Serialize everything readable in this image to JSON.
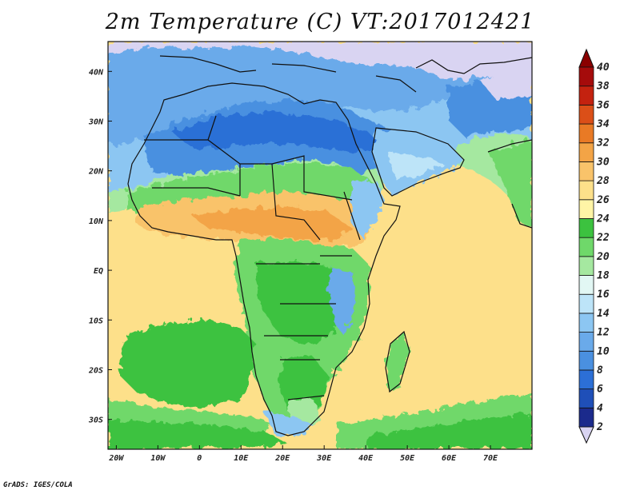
{
  "title": "2m Temperature (C) VT:2017012421",
  "credit": "GrADS: IGES/COLA",
  "map": {
    "type": "filled-contour-map",
    "variable": "2m Temperature",
    "units": "C",
    "region": "Africa, Middle East and Indian Ocean",
    "lon_range": [
      -22,
      80
    ],
    "lat_range": [
      -36,
      46
    ],
    "x_ticks": [
      {
        "value": -20,
        "label": "20W"
      },
      {
        "value": -10,
        "label": "10W"
      },
      {
        "value": 0,
        "label": "0"
      },
      {
        "value": 10,
        "label": "10E"
      },
      {
        "value": 20,
        "label": "20E"
      },
      {
        "value": 30,
        "label": "30E"
      },
      {
        "value": 40,
        "label": "40E"
      },
      {
        "value": 50,
        "label": "50E"
      },
      {
        "value": 60,
        "label": "60E"
      },
      {
        "value": 70,
        "label": "70E"
      }
    ],
    "y_ticks": [
      {
        "value": 40,
        "label": "40N"
      },
      {
        "value": 30,
        "label": "30N"
      },
      {
        "value": 20,
        "label": "20N"
      },
      {
        "value": 10,
        "label": "10N"
      },
      {
        "value": 0,
        "label": "EQ"
      },
      {
        "value": -10,
        "label": "10S"
      },
      {
        "value": -20,
        "label": "20S"
      },
      {
        "value": -30,
        "label": "30S"
      }
    ]
  },
  "colorbar": {
    "levels": [
      "2",
      "4",
      "6",
      "8",
      "10",
      "12",
      "14",
      "16",
      "18",
      "20",
      "22",
      "24",
      "26",
      "28",
      "30",
      "32",
      "34",
      "36",
      "38",
      "40"
    ],
    "colors": [
      "#d9d4f2",
      "#1b2a8c",
      "#1f4fb8",
      "#2c6fd6",
      "#4a90e0",
      "#6aaaea",
      "#8cc6f2",
      "#bde4f8",
      "#e2f7f4",
      "#a5e8a0",
      "#6fd86a",
      "#3cc23f",
      "#fff5a6",
      "#fde08a",
      "#f9c36a",
      "#f3a446",
      "#e97a25",
      "#db4f18",
      "#c4220f",
      "#a50b0b",
      "#7a0000"
    ],
    "min_arrow": "#d9d4f2",
    "max_arrow": "#8a0000"
  }
}
